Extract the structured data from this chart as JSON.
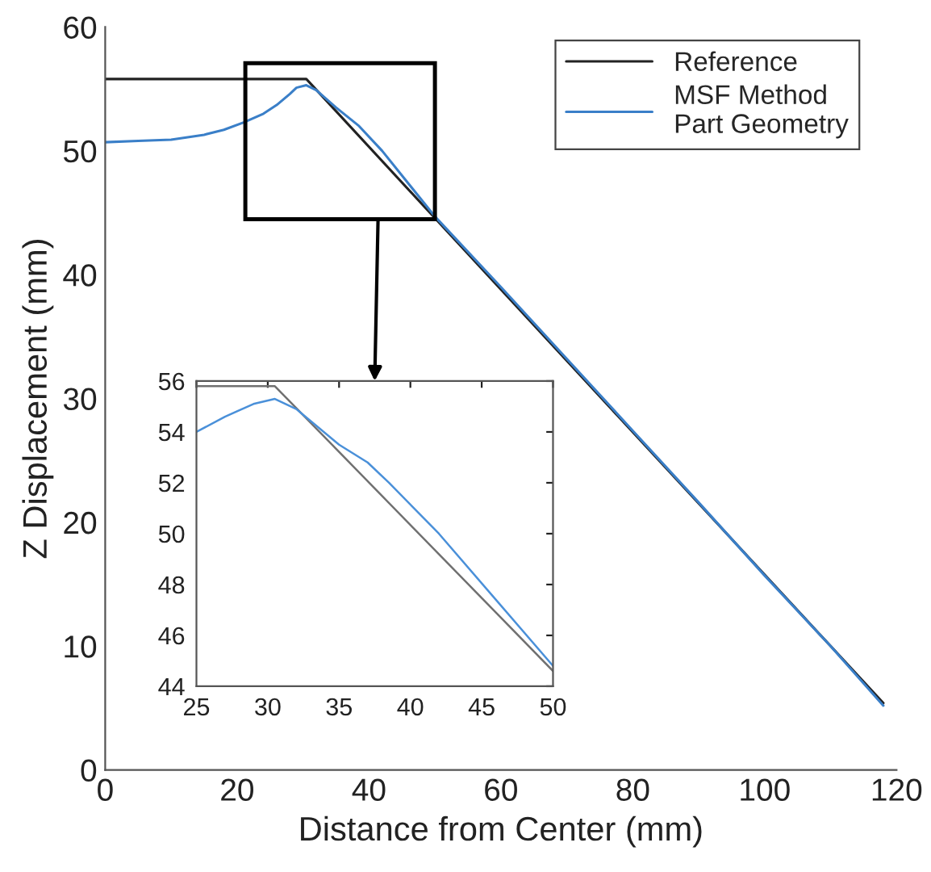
{
  "chart_data": [
    {
      "type": "line",
      "xlabel": "Distance from Center (mm)",
      "ylabel": "Z Displacement (mm)",
      "xlim": [
        0,
        120
      ],
      "ylim": [
        0,
        60
      ],
      "xticks": [
        0,
        20,
        40,
        60,
        80,
        100,
        120
      ],
      "yticks": [
        0,
        10,
        20,
        30,
        40,
        50,
        60
      ],
      "grid": false,
      "legend": "top right",
      "series": [
        {
          "name": "Reference",
          "color": "#222222",
          "x": [
            0,
            30.5,
            118
          ],
          "values": [
            55.8,
            55.8,
            5.4
          ]
        },
        {
          "name": "MSF Method\nPart Geometry",
          "color": "#3a7fc8",
          "x": [
            0,
            5,
            10,
            15,
            18,
            21,
            24,
            26,
            28,
            29,
            30.5,
            32,
            35,
            38.5,
            42,
            50,
            60,
            70,
            80,
            90,
            100,
            110,
            118
          ],
          "values": [
            50.7,
            50.8,
            50.9,
            51.3,
            51.7,
            52.3,
            53.0,
            53.7,
            54.6,
            55.1,
            55.3,
            54.9,
            53.5,
            52.0,
            50.0,
            44.7,
            39.0,
            33.2,
            27.4,
            21.6,
            15.7,
            10.0,
            5.2
          ]
        }
      ]
    },
    {
      "type": "line",
      "xlim": [
        25,
        50
      ],
      "ylim": [
        44,
        56
      ],
      "xticks": [
        25,
        30,
        35,
        40,
        45,
        50
      ],
      "yticks": [
        44,
        46,
        48,
        50,
        52,
        54,
        56
      ],
      "grid": false,
      "series": [
        {
          "color": "#707070",
          "x": [
            25,
            30.5,
            50
          ],
          "values": [
            55.8,
            55.8,
            44.6
          ]
        },
        {
          "color": "#4a90d9",
          "x": [
            25,
            27,
            29,
            30.5,
            32,
            35,
            37,
            38.5,
            42,
            46,
            50
          ],
          "values": [
            54.0,
            54.6,
            55.1,
            55.3,
            54.9,
            53.5,
            52.8,
            52.0,
            50.0,
            47.4,
            44.8
          ]
        }
      ]
    }
  ]
}
